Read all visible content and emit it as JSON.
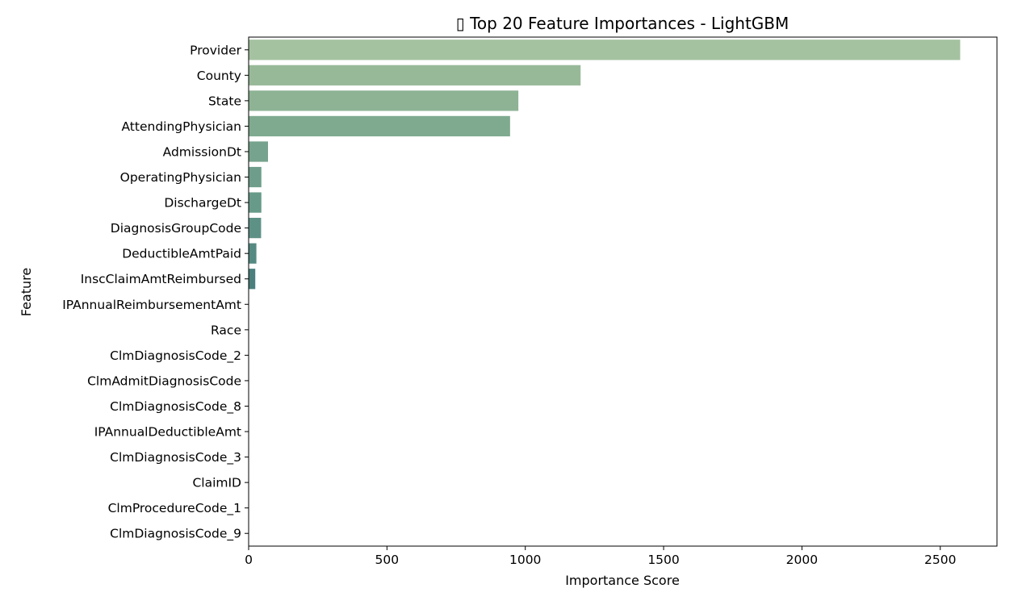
{
  "chart_data": {
    "type": "bar",
    "orientation": "horizontal",
    "title": "▯ Top 20 Feature Importances - LightGBM",
    "xlabel": "Importance Score",
    "ylabel": "Feature",
    "xlim": [
      0,
      2705
    ],
    "xticks": [
      0,
      500,
      1000,
      1500,
      2000,
      2500
    ],
    "grid": false,
    "categories": [
      "Provider",
      "County",
      "State",
      "AttendingPhysician",
      "AdmissionDt",
      "OperatingPhysician",
      "DischargeDt",
      "DiagnosisGroupCode",
      "DeductibleAmtPaid",
      "InscClaimAmtReimbursed",
      "IPAnnualReimbursementAmt",
      "Race",
      "ClmDiagnosisCode_2",
      "ClmAdmitDiagnosisCode",
      "ClmDiagnosisCode_8",
      "IPAnnualDeductibleAmt",
      "ClmDiagnosisCode_3",
      "ClaimID",
      "ClmProcedureCode_1",
      "ClmDiagnosisCode_9"
    ],
    "values": [
      2572,
      1200,
      975,
      945,
      70,
      46,
      46,
      45,
      28,
      24,
      0,
      0,
      0,
      0,
      0,
      0,
      0,
      0,
      0,
      0
    ],
    "colors": [
      "#a4c2a0",
      "#98b998",
      "#8db394",
      "#7faa90",
      "#76a38d",
      "#6e9e8b",
      "#689a89",
      "#5e9186",
      "#558a82",
      "#4a7f7d",
      "#44787a",
      "#3e7077",
      "#386974",
      "#326270",
      "#2d5b6c",
      "#285468",
      "#234d64",
      "#1e4660",
      "#1a3f5b",
      "#163957"
    ]
  }
}
